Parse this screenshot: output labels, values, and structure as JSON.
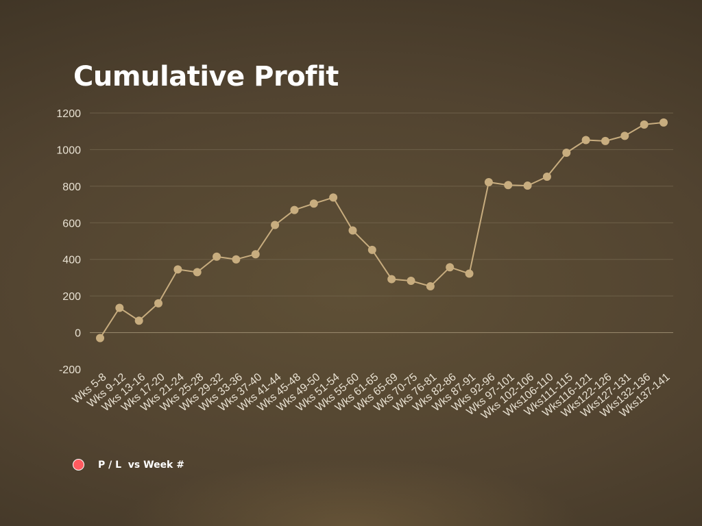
{
  "colors": {
    "line": "#c8ad7f",
    "marker": "#c8ad7f",
    "grid": "#6e6049",
    "zero_line": "#9c8c70",
    "tick_text": "#e9e2d3",
    "legend_marker": "#ff5a5f"
  },
  "chart_data": {
    "type": "line",
    "title": "Cumulative Profit",
    "xlabel": "",
    "ylabel": "",
    "ylim": [
      -200,
      1200
    ],
    "yticks": [
      -200,
      0,
      200,
      400,
      600,
      800,
      1000,
      1200
    ],
    "grid": true,
    "legend_position": "bottom-left",
    "categories": [
      "Wks 5-8",
      "Wks 9-12",
      "Wks 13-16",
      "Wks 17-20",
      "Wks 21-24",
      "Wks 25-28",
      "Wks 29-32",
      "Wks 33-36",
      "Wks 37-40",
      "Wks 41-44",
      "Wks 45-48",
      "Wks 49-50",
      "Wks 51-54",
      "Wks 55-60",
      "Wks 61-65",
      "Wks 65-69",
      "Wks 70-75",
      "Wks 76-81",
      "Wks 82-86",
      "Wks 87-91",
      "Wks 92-96",
      "Wks 97-101",
      "Wks 102-106",
      "Wks106-110",
      "Wks111-115",
      "Wks116-121",
      "Wks122-126",
      "Wks127-131",
      "Wks132-136",
      "Wks137-141"
    ],
    "series": [
      {
        "name": "P / L  vs Week #",
        "values": [
          -30,
          135,
          65,
          160,
          345,
          330,
          415,
          400,
          428,
          588,
          670,
          705,
          738,
          558,
          452,
          292,
          283,
          253,
          357,
          322,
          822,
          806,
          803,
          852,
          983,
          1052,
          1047,
          1075,
          1137,
          1148
        ]
      }
    ]
  }
}
